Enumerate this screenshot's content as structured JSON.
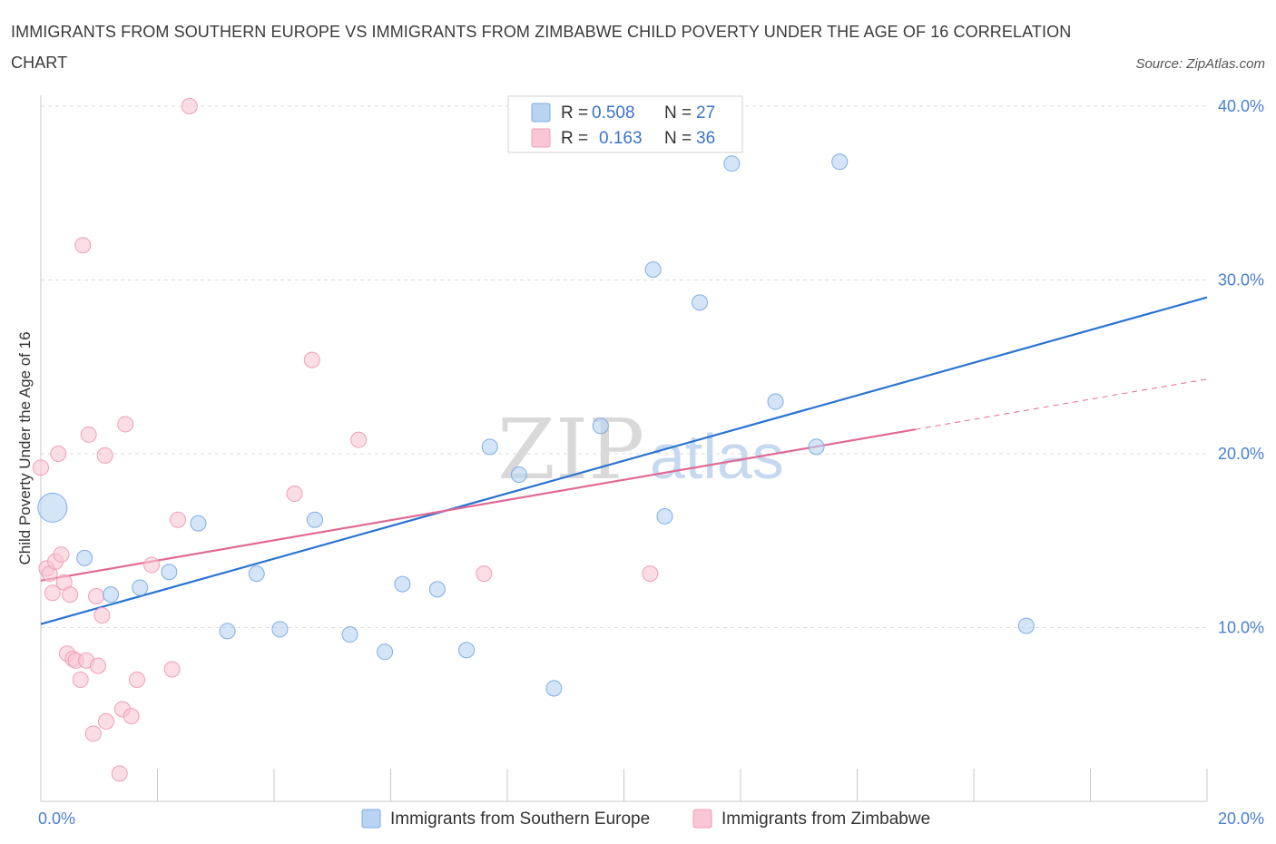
{
  "title": "IMMIGRANTS FROM SOUTHERN EUROPE VS IMMIGRANTS FROM ZIMBABWE CHILD POVERTY UNDER THE AGE OF 16 CORRELATION CHART",
  "source": "Source: ZipAtlas.com",
  "watermark": {
    "zip": "ZIP",
    "atlas": "atlas"
  },
  "legend_top": [
    {
      "r_label": "R =",
      "r_value": "0.508",
      "n_label": "N =",
      "n_value": "27"
    },
    {
      "r_label": "R =",
      "r_value": "0.163",
      "n_label": "N =",
      "n_value": "36"
    }
  ],
  "legend_bottom": [
    "Immigrants from Southern Europe",
    "Immigrants from Zimbabwe"
  ],
  "colors": {
    "blue_fill": "#b9d3f3",
    "blue_stroke": "#7eaee6",
    "blue_line": "#2b73d0",
    "pink_fill": "#f8c6d5",
    "pink_stroke": "#ef9fb8",
    "pink_line": "#e06a94",
    "grid": "#dddddd",
    "tick_text": "#4a7fd0"
  },
  "chart_data": {
    "type": "scatter",
    "title": "IMMIGRANTS FROM SOUTHERN EUROPE VS IMMIGRANTS FROM ZIMBABWE CHILD POVERTY UNDER THE AGE OF 16 CORRELATION CHART",
    "xlabel": "",
    "ylabel": "Child Poverty Under the Age of 16",
    "xlim": [
      0,
      20
    ],
    "ylim": [
      0,
      40
    ],
    "x_tick_labels": [
      "0.0%",
      "20.0%"
    ],
    "y_ticks": [
      10,
      20,
      30,
      40
    ],
    "y_tick_labels": [
      "10.0%",
      "20.0%",
      "30.0%",
      "40.0%"
    ],
    "grid": true,
    "series": [
      {
        "name": "Immigrants from Southern Europe",
        "color": "#b9d3f3",
        "points": [
          {
            "x": 0.2,
            "y": 16.9,
            "large": true
          },
          {
            "x": 0.75,
            "y": 14.0
          },
          {
            "x": 1.2,
            "y": 11.9
          },
          {
            "x": 1.7,
            "y": 12.3
          },
          {
            "x": 2.2,
            "y": 13.2
          },
          {
            "x": 2.7,
            "y": 16.0
          },
          {
            "x": 3.2,
            "y": 9.8
          },
          {
            "x": 3.7,
            "y": 13.1
          },
          {
            "x": 4.1,
            "y": 9.9
          },
          {
            "x": 4.7,
            "y": 16.2
          },
          {
            "x": 5.3,
            "y": 9.6
          },
          {
            "x": 5.9,
            "y": 8.6
          },
          {
            "x": 6.2,
            "y": 12.5
          },
          {
            "x": 6.8,
            "y": 12.2
          },
          {
            "x": 7.3,
            "y": 8.7
          },
          {
            "x": 7.7,
            "y": 20.4
          },
          {
            "x": 8.2,
            "y": 18.8
          },
          {
            "x": 8.8,
            "y": 6.5
          },
          {
            "x": 9.6,
            "y": 21.6
          },
          {
            "x": 10.5,
            "y": 30.6
          },
          {
            "x": 10.7,
            "y": 16.4
          },
          {
            "x": 11.3,
            "y": 28.7
          },
          {
            "x": 11.85,
            "y": 36.7
          },
          {
            "x": 12.6,
            "y": 23.0
          },
          {
            "x": 13.3,
            "y": 20.4
          },
          {
            "x": 13.7,
            "y": 36.8
          },
          {
            "x": 16.9,
            "y": 10.1
          }
        ],
        "trend": {
          "x0": 0,
          "y0": 10.2,
          "x1": 20,
          "y1": 29.0
        }
      },
      {
        "name": "Immigrants from Zimbabwe",
        "color": "#f8c6d5",
        "points": [
          {
            "x": 0.0,
            "y": 19.2
          },
          {
            "x": 0.1,
            "y": 13.4
          },
          {
            "x": 0.15,
            "y": 13.1
          },
          {
            "x": 0.2,
            "y": 12.0
          },
          {
            "x": 0.25,
            "y": 13.8
          },
          {
            "x": 0.3,
            "y": 20.0
          },
          {
            "x": 0.35,
            "y": 14.2
          },
          {
            "x": 0.4,
            "y": 12.6
          },
          {
            "x": 0.45,
            "y": 8.5
          },
          {
            "x": 0.5,
            "y": 11.9
          },
          {
            "x": 0.55,
            "y": 8.2
          },
          {
            "x": 0.6,
            "y": 8.1
          },
          {
            "x": 0.68,
            "y": 7.0
          },
          {
            "x": 0.72,
            "y": 32.0
          },
          {
            "x": 0.78,
            "y": 8.1
          },
          {
            "x": 0.82,
            "y": 21.1
          },
          {
            "x": 0.9,
            "y": 3.9
          },
          {
            "x": 0.95,
            "y": 11.8
          },
          {
            "x": 0.98,
            "y": 7.8
          },
          {
            "x": 1.05,
            "y": 10.7
          },
          {
            "x": 1.1,
            "y": 19.9
          },
          {
            "x": 1.12,
            "y": 4.6
          },
          {
            "x": 1.35,
            "y": 1.6
          },
          {
            "x": 1.4,
            "y": 5.3
          },
          {
            "x": 1.45,
            "y": 21.7
          },
          {
            "x": 1.55,
            "y": 4.9
          },
          {
            "x": 1.65,
            "y": 7.0
          },
          {
            "x": 1.9,
            "y": 13.6
          },
          {
            "x": 2.25,
            "y": 7.6
          },
          {
            "x": 2.35,
            "y": 16.2
          },
          {
            "x": 2.55,
            "y": 40.0
          },
          {
            "x": 4.35,
            "y": 17.7
          },
          {
            "x": 4.65,
            "y": 25.4
          },
          {
            "x": 5.45,
            "y": 20.8
          },
          {
            "x": 7.6,
            "y": 13.1
          },
          {
            "x": 10.45,
            "y": 13.1
          }
        ],
        "trend": {
          "x0": 0,
          "y0": 12.7,
          "x1": 15,
          "y1": 21.4
        },
        "trend_extension": {
          "x0": 15,
          "y0": 21.4,
          "x1": 20,
          "y1": 24.3
        }
      }
    ]
  }
}
